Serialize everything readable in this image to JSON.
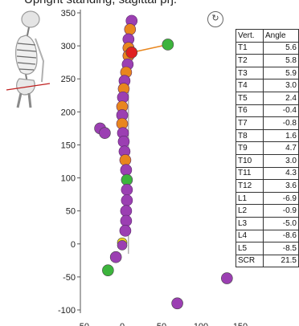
{
  "title": "Upright standing, sagittal prj.",
  "view_icon": "rotate-view-icon",
  "table": {
    "headers": [
      "Vert.",
      "Angle"
    ],
    "rows": [
      {
        "vert": "T1",
        "angle": "5.6"
      },
      {
        "vert": "T2",
        "angle": "5.8"
      },
      {
        "vert": "T3",
        "angle": "5.9"
      },
      {
        "vert": "T4",
        "angle": "3.0"
      },
      {
        "vert": "T5",
        "angle": "2.4"
      },
      {
        "vert": "T6",
        "angle": "-0.4"
      },
      {
        "vert": "T7",
        "angle": "-0.8"
      },
      {
        "vert": "T8",
        "angle": "1.6"
      },
      {
        "vert": "T9",
        "angle": "4.7"
      },
      {
        "vert": "T10",
        "angle": "3.0"
      },
      {
        "vert": "T11",
        "angle": "4.3"
      },
      {
        "vert": "T12",
        "angle": "3.6"
      },
      {
        "vert": "L1",
        "angle": "-6.9"
      },
      {
        "vert": "L2",
        "angle": "-0.9"
      },
      {
        "vert": "L3",
        "angle": "-5.0"
      },
      {
        "vert": "L4",
        "angle": "-8.6"
      },
      {
        "vert": "L5",
        "angle": "-8.5"
      },
      {
        "vert": "SCR",
        "angle": "21.5"
      }
    ]
  },
  "chart_data": {
    "type": "scatter",
    "y_ticks": [
      "350",
      "300",
      "250",
      "200",
      "150",
      "100",
      "50",
      "0",
      "-50",
      "-100"
    ],
    "x_ticks": [
      "-50",
      "0",
      "50",
      "100",
      "150"
    ],
    "ylim": [
      -100,
      350
    ],
    "xlim": [
      -60,
      160
    ],
    "colors": {
      "purple": "#9b3fb2",
      "orange": "#e8861e",
      "red": "#e02020",
      "green": "#3cb43c",
      "yellow": "#e8d21e",
      "line": "#888888"
    },
    "vertical_line_x": 8,
    "spine_points": [
      {
        "x": 12,
        "y": 338,
        "color": "purple"
      },
      {
        "x": 10,
        "y": 325,
        "color": "orange"
      },
      {
        "x": 8,
        "y": 310,
        "color": "purple"
      },
      {
        "x": 8,
        "y": 297,
        "color": "orange"
      },
      {
        "x": 8,
        "y": 285,
        "color": "orange"
      },
      {
        "x": 7,
        "y": 272,
        "color": "purple"
      },
      {
        "x": 5,
        "y": 260,
        "color": "orange"
      },
      {
        "x": 3,
        "y": 247,
        "color": "purple"
      },
      {
        "x": 2,
        "y": 235,
        "color": "orange"
      },
      {
        "x": 1,
        "y": 222,
        "color": "purple"
      },
      {
        "x": 0,
        "y": 208,
        "color": "orange"
      },
      {
        "x": 0,
        "y": 195,
        "color": "purple"
      },
      {
        "x": 0,
        "y": 182,
        "color": "orange"
      },
      {
        "x": 1,
        "y": 168,
        "color": "purple"
      },
      {
        "x": 2,
        "y": 155,
        "color": "purple"
      },
      {
        "x": 3,
        "y": 140,
        "color": "purple"
      },
      {
        "x": 4,
        "y": 127,
        "color": "orange"
      },
      {
        "x": 5,
        "y": 112,
        "color": "purple"
      },
      {
        "x": 6,
        "y": 97,
        "color": "green"
      },
      {
        "x": 6,
        "y": 82,
        "color": "purple"
      },
      {
        "x": 6,
        "y": 66,
        "color": "purple"
      },
      {
        "x": 5,
        "y": 50,
        "color": "purple"
      },
      {
        "x": 5,
        "y": 35,
        "color": "purple"
      },
      {
        "x": 4,
        "y": 20,
        "color": "purple"
      }
    ],
    "other_points": [
      {
        "x": 12,
        "y": 290,
        "color": "red",
        "r": 7
      },
      {
        "x": 58,
        "y": 302,
        "color": "green",
        "r": 7
      },
      {
        "x": -28,
        "y": 175,
        "color": "purple",
        "r": 7
      },
      {
        "x": -22,
        "y": 168,
        "color": "purple",
        "r": 7
      },
      {
        "x": 0,
        "y": 2,
        "color": "yellow",
        "r": 6
      },
      {
        "x": 0,
        "y": -2,
        "color": "purple",
        "r": 6
      },
      {
        "x": -8,
        "y": -20,
        "color": "purple",
        "r": 7
      },
      {
        "x": -18,
        "y": -40,
        "color": "green",
        "r": 7
      },
      {
        "x": 70,
        "y": -90,
        "color": "purple",
        "r": 7
      },
      {
        "x": 133,
        "y": -52,
        "color": "purple",
        "r": 7
      }
    ],
    "connector": {
      "from": [
        12,
        290
      ],
      "to": [
        58,
        302
      ],
      "color": "orange"
    }
  }
}
